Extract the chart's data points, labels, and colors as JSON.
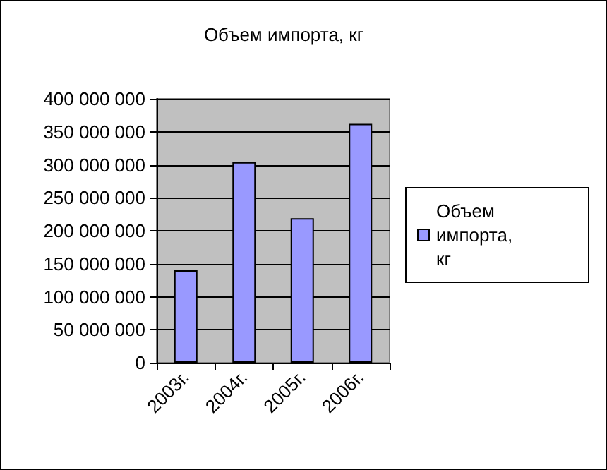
{
  "chart_data": {
    "type": "bar",
    "title": "Объем импорта, кг",
    "categories": [
      "2003г.",
      "2004г.",
      "2005г.",
      "2006г."
    ],
    "series": [
      {
        "name": "Объем импорта, кг",
        "color": "#9999ff",
        "values": [
          140000000,
          304000000,
          219000000,
          362000000
        ]
      }
    ],
    "ylim": [
      0,
      400000000
    ],
    "yticks": [
      0,
      {
        "value": 50000000,
        "label": "50 000 000"
      },
      {
        "value": 100000000,
        "label": "100 000 000"
      },
      {
        "value": 150000000,
        "label": "150 000 000"
      },
      {
        "value": 200000000,
        "label": "200 000 000"
      },
      {
        "value": 250000000,
        "label": "250 000 000"
      },
      {
        "value": 300000000,
        "label": "300 000 000"
      },
      {
        "value": 350000000,
        "label": "350 000 000"
      },
      {
        "value": 400000000,
        "label": "400 000 000"
      }
    ],
    "grid": "y",
    "legend": "right"
  }
}
